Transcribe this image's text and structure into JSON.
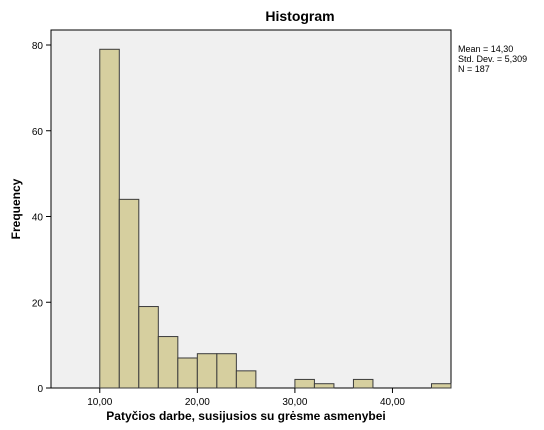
{
  "chart_data": {
    "type": "bar",
    "title": "Histogram",
    "xlabel": "Patyčios darbe, susijusios su grėsme asmenybei",
    "ylabel": "Frequency",
    "bins": [
      {
        "start": 10.0,
        "end": 12.0,
        "count": 79
      },
      {
        "start": 12.0,
        "end": 14.0,
        "count": 44
      },
      {
        "start": 14.0,
        "end": 16.0,
        "count": 19
      },
      {
        "start": 16.0,
        "end": 18.0,
        "count": 12
      },
      {
        "start": 18.0,
        "end": 20.0,
        "count": 7
      },
      {
        "start": 20.0,
        "end": 22.0,
        "count": 8
      },
      {
        "start": 22.0,
        "end": 24.0,
        "count": 8
      },
      {
        "start": 24.0,
        "end": 26.0,
        "count": 4
      },
      {
        "start": 30.0,
        "end": 32.0,
        "count": 2
      },
      {
        "start": 32.0,
        "end": 34.0,
        "count": 1
      },
      {
        "start": 36.0,
        "end": 38.0,
        "count": 2
      },
      {
        "start": 44.0,
        "end": 46.0,
        "count": 1
      }
    ],
    "xlim": [
      5.0,
      46.0
    ],
    "ylim": [
      0,
      80
    ],
    "xticks": [
      10,
      20,
      30,
      40
    ],
    "xtick_labels": [
      "10,00",
      "20,00",
      "30,00",
      "40,00"
    ],
    "yticks": [
      0,
      20,
      40,
      60,
      80
    ],
    "ytick_labels": [
      "0",
      "20",
      "40",
      "60",
      "80"
    ],
    "bar_color": "#d6cf9f",
    "bar_edge_color": "#3b3b3b",
    "plot_background": "#f0f0f0",
    "grid": false,
    "legend": false,
    "stats": {
      "mean": "Mean = 14,30",
      "std": "Std. Dev. = 5,309",
      "n": "N = 187"
    }
  }
}
